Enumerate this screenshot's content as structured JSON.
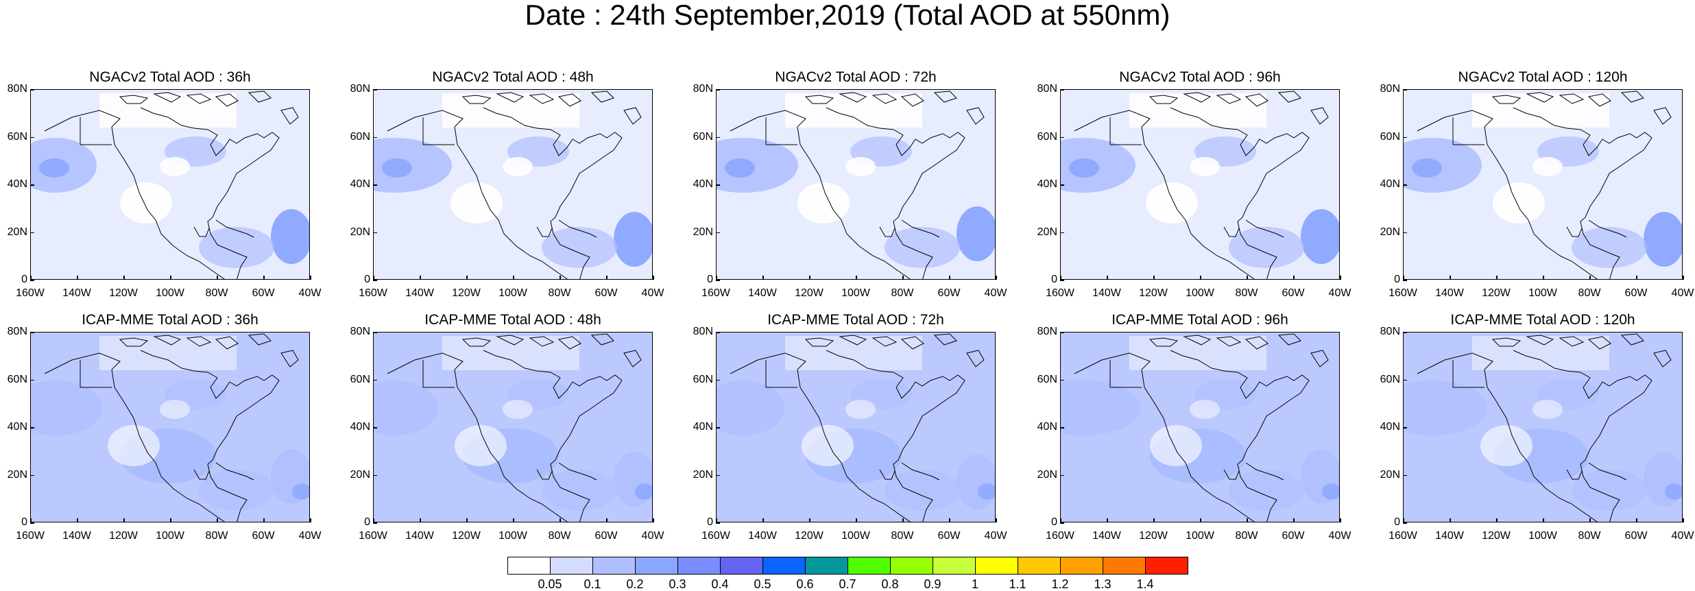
{
  "figure": {
    "title": "Date : 24th September,2019 (Total AOD at 550nm)"
  },
  "axes": {
    "y_ticks": [
      "80N",
      "60N",
      "40N",
      "20N",
      "0"
    ],
    "x_ticks": [
      "160W",
      "140W",
      "120W",
      "100W",
      "80W",
      "60W",
      "40W"
    ]
  },
  "panels": [
    {
      "title": "NGACv2 Total AOD : 36h"
    },
    {
      "title": "NGACv2 Total AOD : 48h"
    },
    {
      "title": "NGACv2 Total AOD : 72h"
    },
    {
      "title": "NGACv2 Total AOD : 96h"
    },
    {
      "title": "NGACv2 Total AOD : 120h"
    },
    {
      "title": "ICAP-MME Total AOD : 36h"
    },
    {
      "title": "ICAP-MME Total AOD : 48h"
    },
    {
      "title": "ICAP-MME Total AOD : 72h"
    },
    {
      "title": "ICAP-MME Total AOD : 96h"
    },
    {
      "title": "ICAP-MME Total AOD : 120h"
    }
  ],
  "colorbar": {
    "colors": [
      "#ffffff",
      "#d4dcff",
      "#b0c0ff",
      "#8aa6ff",
      "#7a8cff",
      "#6464f0",
      "#0a64ff",
      "#05969b",
      "#50ff00",
      "#96ff00",
      "#c8ff3c",
      "#ffff00",
      "#ffc800",
      "#ffa000",
      "#ff7800",
      "#ff2000"
    ],
    "labels": [
      "0.05",
      "0.1",
      "0.2",
      "0.3",
      "0.4",
      "0.5",
      "0.6",
      "0.7",
      "0.8",
      "0.9",
      "1",
      "1.1",
      "1.2",
      "1.3",
      "1.4"
    ]
  },
  "map_extent": {
    "lon_min": -160,
    "lon_max": -40,
    "lat_min": 0,
    "lat_max": 80
  },
  "colors": {
    "land_outline": "#000000",
    "ngac_background": "#d4dcff",
    "icap_background": "#b0c0ff",
    "high_aod": "#8aa6ff"
  }
}
